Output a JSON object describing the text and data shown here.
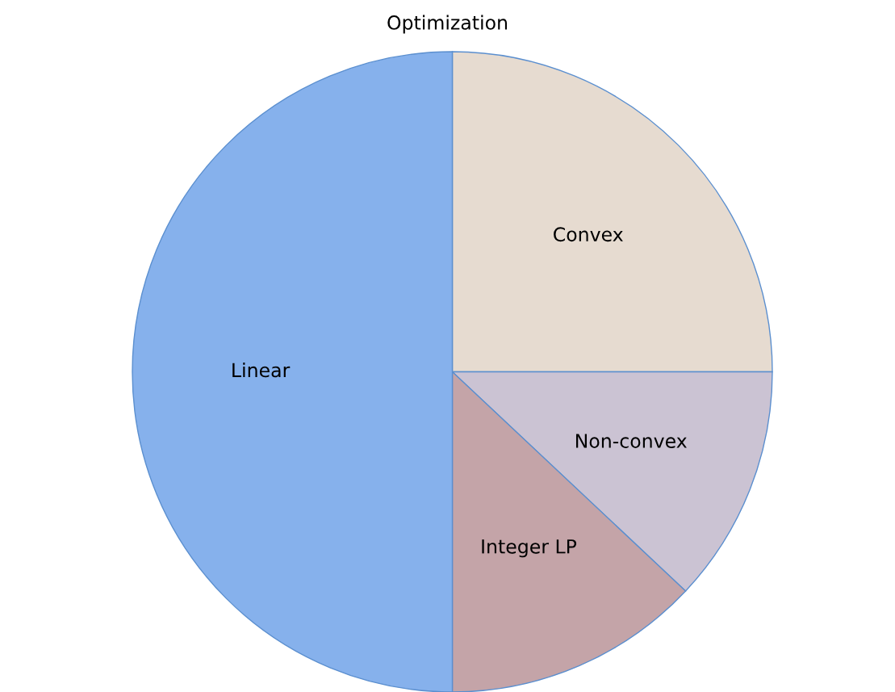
{
  "chart_data": {
    "type": "pie",
    "title": "Optimization",
    "categories": [
      "Convex",
      "Non-convex",
      "Integer LP",
      "Linear"
    ],
    "values": [
      25,
      12,
      13,
      50
    ],
    "colors": [
      "#e6dbd0",
      "#cbc3d3",
      "#c4a4a8",
      "#86b1ec"
    ]
  }
}
